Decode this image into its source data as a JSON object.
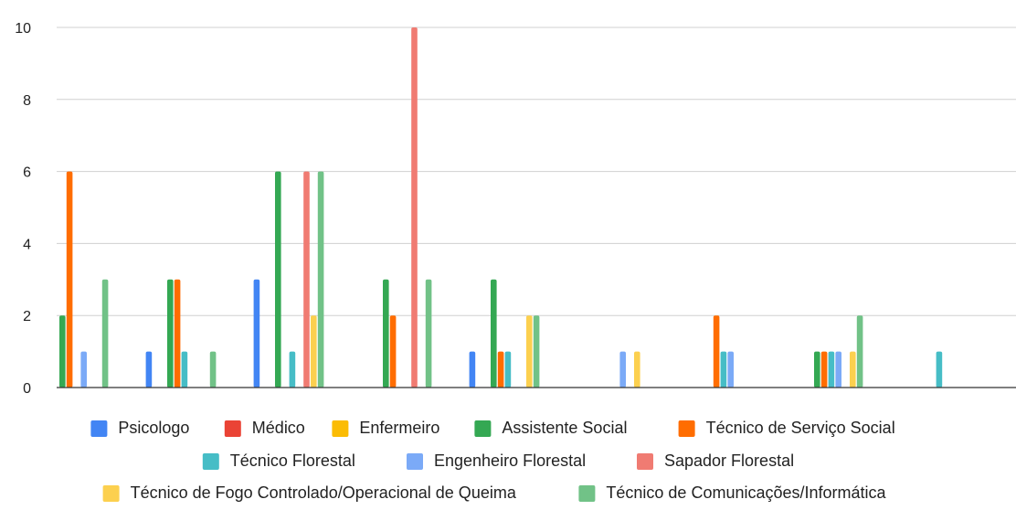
{
  "chart_data": {
    "type": "bar",
    "categories": [
      "",
      "",
      "",
      "",
      "",
      "",
      "",
      "",
      ""
    ],
    "ylim": [
      0,
      10
    ],
    "yticks": [
      0,
      2,
      4,
      6,
      8,
      10
    ],
    "grid": true,
    "legend_position": "bottom",
    "series": [
      {
        "name": "Psicologo",
        "color": "#4285f4",
        "values": [
          0,
          1,
          3,
          0,
          1,
          0,
          0,
          0,
          0
        ]
      },
      {
        "name": "Médico",
        "color": "#ea4335",
        "values": [
          0,
          0,
          0,
          0,
          0,
          0,
          0,
          0,
          0
        ]
      },
      {
        "name": "Enfermeiro",
        "color": "#fbbc04",
        "values": [
          0,
          0,
          0,
          0,
          0,
          0,
          0,
          0,
          0
        ]
      },
      {
        "name": "Assistente Social",
        "color": "#34a853",
        "values": [
          2,
          3,
          6,
          3,
          3,
          0,
          0,
          1,
          0
        ]
      },
      {
        "name": "Técnico de Serviço Social",
        "color": "#ff6d01",
        "values": [
          6,
          3,
          0,
          2,
          1,
          0,
          2,
          1,
          0
        ]
      },
      {
        "name": "Técnico Florestal",
        "color": "#46bdc6",
        "values": [
          0,
          1,
          1,
          0,
          1,
          0,
          1,
          1,
          1
        ]
      },
      {
        "name": "Engenheiro Florestal",
        "color": "#7baaf7",
        "values": [
          1,
          0,
          0,
          0,
          0,
          1,
          1,
          1,
          0
        ]
      },
      {
        "name": "Sapador Florestal",
        "color": "#f07b72",
        "values": [
          0,
          0,
          6,
          10,
          0,
          0,
          0,
          0,
          0
        ]
      },
      {
        "name": "Técnico de Fogo Controlado/Operacional de Queima",
        "color": "#fcd04f",
        "values": [
          0,
          0,
          2,
          0,
          2,
          1,
          0,
          1,
          0
        ]
      },
      {
        "name": "Técnico de Comunicações/Informática",
        "color": "#71c287",
        "values": [
          3,
          1,
          6,
          3,
          2,
          0,
          0,
          2,
          0
        ]
      }
    ]
  }
}
